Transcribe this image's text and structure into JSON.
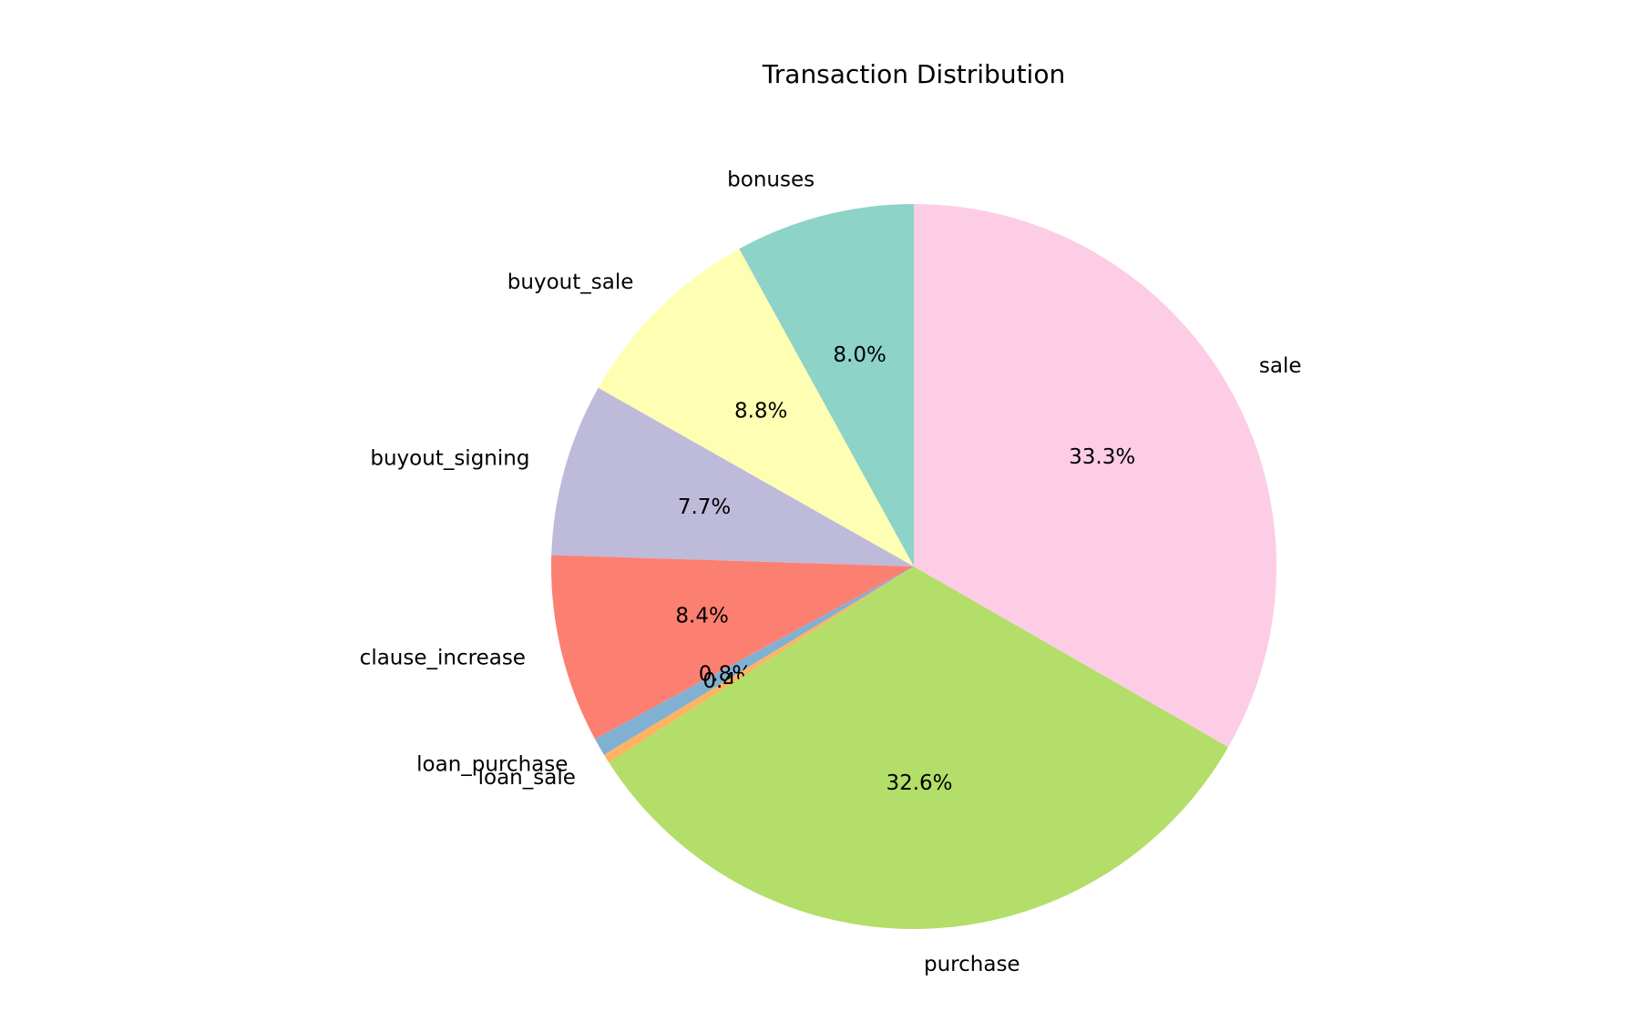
{
  "chart_data": {
    "type": "pie",
    "title": "Transaction Distribution",
    "categories": [
      "bonuses",
      "buyout_sale",
      "buyout_signing",
      "clause_increase",
      "loan_purchase",
      "loan_sale",
      "purchase",
      "sale"
    ],
    "values": [
      8.0,
      8.8,
      7.7,
      8.4,
      0.8,
      0.4,
      32.6,
      33.3
    ],
    "value_labels": [
      "8.0%",
      "8.8%",
      "7.7%",
      "8.4%",
      "0.8%",
      "0.4%",
      "32.6%",
      "33.3%"
    ],
    "colors": [
      "#8dd3c7",
      "#ffffb3",
      "#bebada",
      "#fb8072",
      "#80b1d3",
      "#fdb462",
      "#b3de69",
      "#fccde5"
    ]
  }
}
